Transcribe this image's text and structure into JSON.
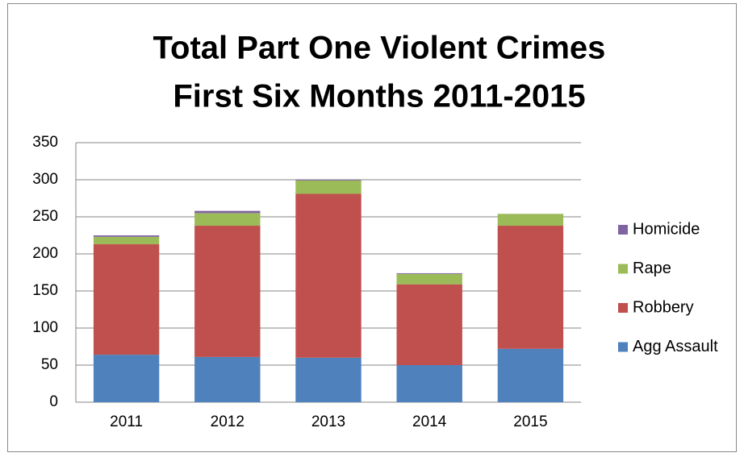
{
  "chart_data": {
    "type": "stacked-bar",
    "title": [
      "Total Part One Violent Crimes",
      "First Six Months 2011-2015"
    ],
    "categories": [
      "2011",
      "2012",
      "2013",
      "2014",
      "2015"
    ],
    "series": [
      {
        "name": "Agg Assault",
        "color": "#4f81bd",
        "values": [
          64,
          61,
          60,
          50,
          72
        ]
      },
      {
        "name": "Robbery",
        "color": "#c0504d",
        "values": [
          149,
          177,
          221,
          109,
          166
        ]
      },
      {
        "name": "Rape",
        "color": "#9bbb59",
        "values": [
          10,
          17,
          18,
          14,
          16
        ]
      },
      {
        "name": "Homicide",
        "color": "#8064a2",
        "values": [
          2,
          3,
          1,
          1,
          0
        ]
      }
    ],
    "ylim": [
      0,
      350
    ],
    "yticks": [
      0,
      50,
      100,
      150,
      200,
      250,
      300,
      350
    ],
    "grid": true,
    "legend": "right"
  }
}
